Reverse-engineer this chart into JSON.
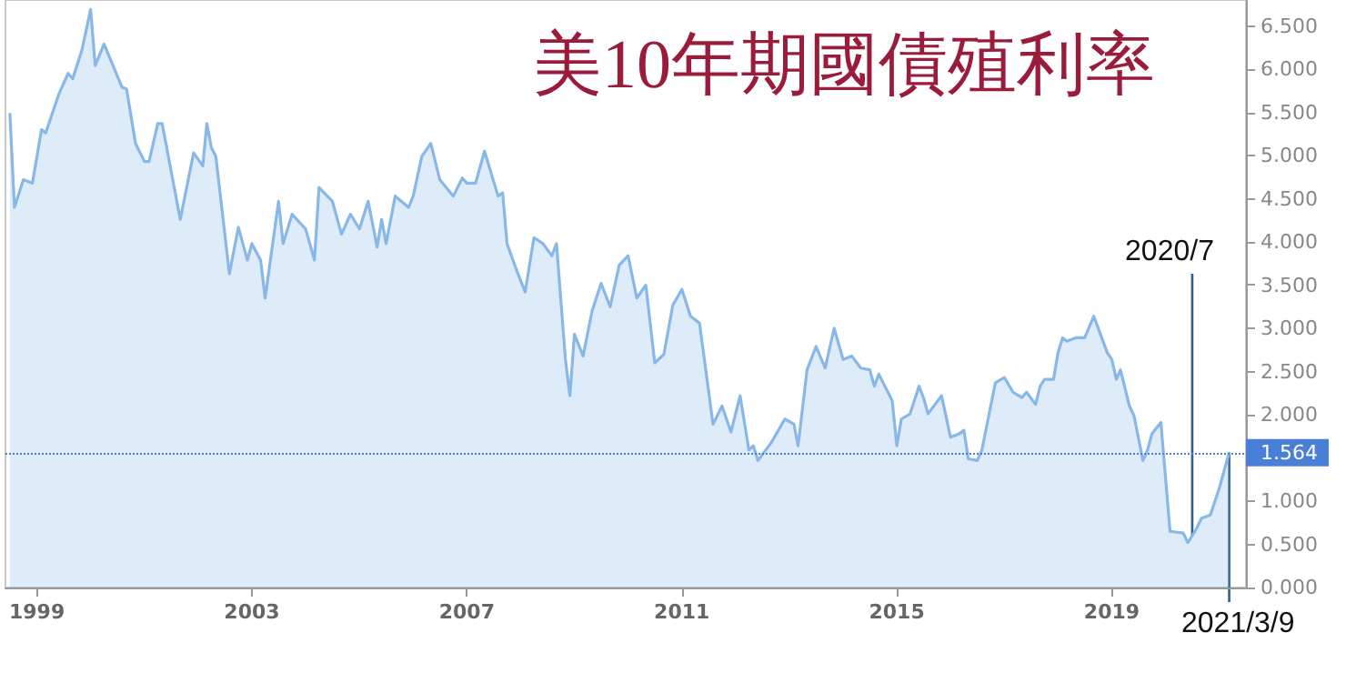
{
  "chart_data": {
    "type": "area",
    "title": "美10年期國債殖利率",
    "x": [
      "1998-07",
      "1998-08",
      "1998-10",
      "1998-12",
      "1999-02",
      "1999-03",
      "1999-06",
      "1999-08",
      "1999-09",
      "1999-11",
      "2000-01",
      "2000-02",
      "2000-04",
      "2000-06",
      "2000-08",
      "2000-09",
      "2000-11",
      "2001-01",
      "2001-02",
      "2001-04",
      "2001-05",
      "2001-09",
      "2001-12",
      "2002-02",
      "2002-03",
      "2002-04",
      "2002-05",
      "2002-08",
      "2002-10",
      "2002-12",
      "2003-01",
      "2003-03",
      "2003-04",
      "2003-07",
      "2003-08",
      "2003-10",
      "2004-01",
      "2004-03",
      "2004-04",
      "2004-07",
      "2004-09",
      "2004-11",
      "2005-01",
      "2005-03",
      "2005-05",
      "2005-06",
      "2005-07",
      "2005-09",
      "2005-12",
      "2006-01",
      "2006-03",
      "2006-05",
      "2006-07",
      "2006-10",
      "2006-12",
      "2007-01",
      "2007-03",
      "2007-05",
      "2007-08",
      "2007-09",
      "2007-10",
      "2007-12",
      "2008-02",
      "2008-04",
      "2008-06",
      "2008-08",
      "2008-09",
      "2008-11",
      "2008-12",
      "2009-01",
      "2009-03",
      "2009-05",
      "2009-07",
      "2009-09",
      "2009-11",
      "2010-01",
      "2010-03",
      "2010-05",
      "2010-07",
      "2010-09",
      "2010-11",
      "2011-01",
      "2011-03",
      "2011-05",
      "2011-08",
      "2011-10",
      "2011-12",
      "2012-02",
      "2012-04",
      "2012-05",
      "2012-06",
      "2012-09",
      "2012-12",
      "2013-02",
      "2013-03",
      "2013-05",
      "2013-07",
      "2013-09",
      "2013-11",
      "2014-01",
      "2014-03",
      "2014-05",
      "2014-07",
      "2014-08",
      "2014-09",
      "2014-12",
      "2015-01",
      "2015-02",
      "2015-04",
      "2015-06",
      "2015-07",
      "2015-08",
      "2015-11",
      "2016-01",
      "2016-03",
      "2016-04",
      "2016-05",
      "2016-07",
      "2016-08",
      "2016-11",
      "2017-01",
      "2017-03",
      "2017-05",
      "2017-06",
      "2017-08",
      "2017-09",
      "2017-10",
      "2017-12",
      "2018-01",
      "2018-02",
      "2018-03",
      "2018-05",
      "2018-07",
      "2018-09",
      "2018-12",
      "2019-01",
      "2019-02",
      "2019-03",
      "2019-05",
      "2019-06",
      "2019-08",
      "2019-09",
      "2019-10",
      "2019-12",
      "2020-02",
      "2020-05",
      "2020-06",
      "2020-07",
      "2020-08",
      "2020-09",
      "2020-11",
      "2021-01",
      "2021-03-09"
    ],
    "series": [
      {
        "color": "#88b8e8",
        "values": [
          5.49,
          4.4,
          4.72,
          4.68,
          5.3,
          5.26,
          5.72,
          5.95,
          5.89,
          6.21,
          6.69,
          6.04,
          6.29,
          6.04,
          5.79,
          5.77,
          5.14,
          4.93,
          4.93,
          5.37,
          5.37,
          4.26,
          5.03,
          4.88,
          5.37,
          5.09,
          4.99,
          3.63,
          4.17,
          3.79,
          3.98,
          3.79,
          3.35,
          4.47,
          3.98,
          4.32,
          4.15,
          3.79,
          4.63,
          4.47,
          4.09,
          4.32,
          4.15,
          4.47,
          3.94,
          4.26,
          3.98,
          4.53,
          4.4,
          4.53,
          4.99,
          5.14,
          4.72,
          4.53,
          4.74,
          4.68,
          4.68,
          5.05,
          4.53,
          4.57,
          3.98,
          3.69,
          3.42,
          4.05,
          3.98,
          3.84,
          3.98,
          2.64,
          2.22,
          2.93,
          2.68,
          3.2,
          3.52,
          3.25,
          3.73,
          3.84,
          3.35,
          3.5,
          2.6,
          2.7,
          3.27,
          3.45,
          3.14,
          3.06,
          1.89,
          2.1,
          1.8,
          2.22,
          1.59,
          1.64,
          1.47,
          1.68,
          1.95,
          1.89,
          1.64,
          2.52,
          2.79,
          2.54,
          3.0,
          2.64,
          2.68,
          2.54,
          2.52,
          2.33,
          2.47,
          2.16,
          1.64,
          1.95,
          2.01,
          2.33,
          2.2,
          2.01,
          2.22,
          1.74,
          1.78,
          1.82,
          1.49,
          1.47,
          1.59,
          2.37,
          2.43,
          2.26,
          2.2,
          2.26,
          2.12,
          2.33,
          2.41,
          2.41,
          2.72,
          2.89,
          2.85,
          2.89,
          2.89,
          3.14,
          2.72,
          2.64,
          2.41,
          2.52,
          2.1,
          1.99,
          1.47,
          1.59,
          1.78,
          1.91,
          0.65,
          0.63,
          0.52,
          0.6,
          0.69,
          0.8,
          0.84,
          1.15,
          1.564
        ]
      }
    ],
    "xlim": [
      "1998-06",
      "2021-07"
    ],
    "xticks": [
      "1999",
      "2003",
      "2007",
      "2011",
      "2015",
      "2019"
    ],
    "ylim": [
      0,
      6.8
    ],
    "yticks": [
      {
        "value": 0,
        "label": "0.000"
      },
      {
        "value": 0.5,
        "label": "0.500"
      },
      {
        "value": 1,
        "label": "1.000"
      },
      {
        "value": 1.5,
        "label": null
      },
      {
        "value": 2,
        "label": "2.000"
      },
      {
        "value": 2.5,
        "label": "2.500"
      },
      {
        "value": 3,
        "label": "3.000"
      },
      {
        "value": 3.5,
        "label": "3.500"
      },
      {
        "value": 4,
        "label": "4.000"
      },
      {
        "value": 4.5,
        "label": "4.500"
      },
      {
        "value": 5,
        "label": "5.000"
      },
      {
        "value": 5.5,
        "label": "5.500"
      },
      {
        "value": 6,
        "label": "6.000"
      },
      {
        "value": 6.5,
        "label": "6.500"
      }
    ],
    "ref_lines": [
      {
        "axis": "y",
        "value": 1.564,
        "label": "1.564",
        "color": "#4a7fd8",
        "line_style": "dotted"
      }
    ],
    "annotations": [
      {
        "text": "2020/7",
        "x": "2020-07",
        "y": 0.6
      },
      {
        "text": "2021/3/9",
        "x": "2021-03-09",
        "y": 1.564
      }
    ],
    "grid": false
  }
}
